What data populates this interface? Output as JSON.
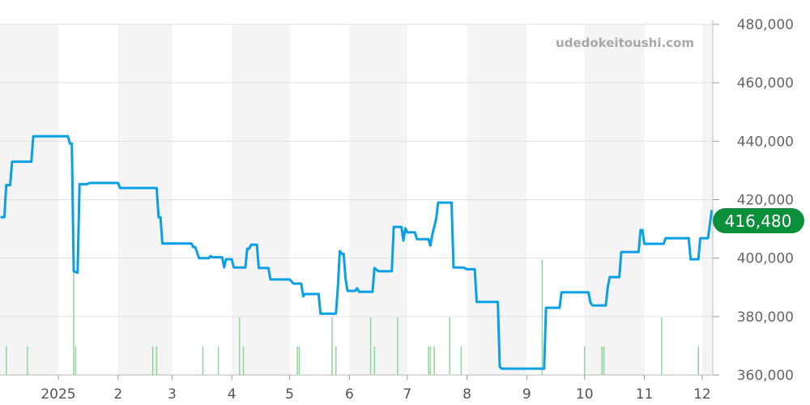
{
  "watermark": "udedokeitoushi.com",
  "current_price_label": "416,480",
  "colors": {
    "line": "#0aa0e6",
    "volume": "#8fd49a",
    "badge": "#0b8f3a",
    "band": "#f4f4f4",
    "grid": "#e0e0e0"
  },
  "chart_data": {
    "type": "line",
    "title": "",
    "xlabel": "",
    "ylabel": "",
    "ylim": [
      360000,
      480000
    ],
    "xlim": [
      "2024-12-02",
      "2025-12-06"
    ],
    "grid": true,
    "y_ticks": [
      {
        "value": 360000,
        "label": "360,000"
      },
      {
        "value": 380000,
        "label": "380,000"
      },
      {
        "value": 400000,
        "label": "400,000"
      },
      {
        "value": 420000,
        "label": "420,000"
      },
      {
        "value": 440000,
        "label": "440,000"
      },
      {
        "value": 460000,
        "label": "460,000"
      },
      {
        "value": 480000,
        "label": "480,000"
      }
    ],
    "x_ticks": [
      {
        "date": "2025-01-01",
        "label": "2025"
      },
      {
        "date": "2025-02-01",
        "label": "2"
      },
      {
        "date": "2025-03-01",
        "label": "3"
      },
      {
        "date": "2025-04-01",
        "label": "4"
      },
      {
        "date": "2025-05-01",
        "label": "5"
      },
      {
        "date": "2025-06-01",
        "label": "6"
      },
      {
        "date": "2025-07-01",
        "label": "7"
      },
      {
        "date": "2025-08-01",
        "label": "8"
      },
      {
        "date": "2025-09-01",
        "label": "9"
      },
      {
        "date": "2025-10-01",
        "label": "10"
      },
      {
        "date": "2025-11-01",
        "label": "11"
      },
      {
        "date": "2025-12-01",
        "label": "12"
      }
    ],
    "price_series": [
      [
        "2024-12-02",
        414000
      ],
      [
        "2024-12-04",
        414000
      ],
      [
        "2024-12-05",
        425000
      ],
      [
        "2024-12-07",
        425000
      ],
      [
        "2024-12-08",
        433000
      ],
      [
        "2024-12-18",
        433000
      ],
      [
        "2024-12-19",
        441700
      ],
      [
        "2025-01-06",
        441700
      ],
      [
        "2025-01-07",
        439200
      ],
      [
        "2025-01-08",
        439200
      ],
      [
        "2025-01-09",
        395500
      ],
      [
        "2025-01-11",
        395000
      ],
      [
        "2025-01-12",
        425300
      ],
      [
        "2025-01-16",
        425300
      ],
      [
        "2025-01-17",
        425700
      ],
      [
        "2025-02-01",
        425700
      ],
      [
        "2025-02-02",
        424000
      ],
      [
        "2025-02-21",
        424000
      ],
      [
        "2025-02-22",
        414000
      ],
      [
        "2025-02-23",
        414000
      ],
      [
        "2025-02-24",
        405000
      ],
      [
        "2025-03-11",
        405000
      ],
      [
        "2025-03-12",
        403800
      ],
      [
        "2025-03-13",
        403800
      ],
      [
        "2025-03-15",
        400000
      ],
      [
        "2025-03-20",
        400000
      ],
      [
        "2025-03-21",
        400700
      ],
      [
        "2025-03-22",
        400300
      ],
      [
        "2025-03-27",
        400300
      ],
      [
        "2025-03-28",
        396800
      ],
      [
        "2025-03-29",
        399600
      ],
      [
        "2025-04-01",
        399600
      ],
      [
        "2025-04-02",
        396800
      ],
      [
        "2025-04-08",
        396800
      ],
      [
        "2025-04-09",
        403200
      ],
      [
        "2025-04-10",
        403200
      ],
      [
        "2025-04-11",
        404600
      ],
      [
        "2025-04-14",
        404600
      ],
      [
        "2025-04-15",
        396600
      ],
      [
        "2025-04-20",
        396600
      ],
      [
        "2025-04-21",
        392700
      ],
      [
        "2025-05-01",
        392700
      ],
      [
        "2025-05-03",
        391300
      ],
      [
        "2025-05-07",
        391300
      ],
      [
        "2025-05-08",
        386900
      ],
      [
        "2025-05-09",
        387700
      ],
      [
        "2025-05-16",
        387700
      ],
      [
        "2025-05-17",
        381000
      ],
      [
        "2025-05-25",
        381000
      ],
      [
        "2025-05-26",
        390000
      ],
      [
        "2025-05-27",
        402400
      ],
      [
        "2025-05-28",
        401500
      ],
      [
        "2025-05-29",
        401500
      ],
      [
        "2025-05-30",
        393000
      ],
      [
        "2025-05-31",
        388800
      ],
      [
        "2025-06-04",
        388800
      ],
      [
        "2025-06-05",
        389700
      ],
      [
        "2025-06-06",
        388500
      ],
      [
        "2025-06-13",
        388500
      ],
      [
        "2025-06-14",
        396600
      ],
      [
        "2025-06-16",
        395500
      ],
      [
        "2025-06-23",
        395500
      ],
      [
        "2025-06-24",
        410700
      ],
      [
        "2025-06-28",
        410700
      ],
      [
        "2025-06-29",
        406000
      ],
      [
        "2025-06-30",
        410200
      ],
      [
        "2025-07-01",
        408800
      ],
      [
        "2025-07-05",
        408800
      ],
      [
        "2025-07-06",
        406500
      ],
      [
        "2025-07-12",
        406500
      ],
      [
        "2025-07-13",
        404300
      ],
      [
        "2025-07-14",
        408000
      ],
      [
        "2025-07-16",
        413500
      ],
      [
        "2025-07-17",
        419000
      ],
      [
        "2025-07-24",
        419000
      ],
      [
        "2025-07-25",
        396800
      ],
      [
        "2025-07-30",
        396800
      ],
      [
        "2025-08-01",
        396200
      ],
      [
        "2025-08-05",
        396200
      ],
      [
        "2025-08-06",
        385000
      ],
      [
        "2025-08-17",
        385000
      ],
      [
        "2025-08-18",
        362800
      ],
      [
        "2025-08-19",
        362200
      ],
      [
        "2025-09-10",
        362200
      ],
      [
        "2025-09-11",
        383000
      ],
      [
        "2025-09-18",
        383000
      ],
      [
        "2025-09-19",
        388300
      ],
      [
        "2025-10-03",
        388300
      ],
      [
        "2025-10-04",
        384800
      ],
      [
        "2025-10-05",
        383800
      ],
      [
        "2025-10-12",
        383800
      ],
      [
        "2025-10-13",
        390000
      ],
      [
        "2025-10-14",
        393500
      ],
      [
        "2025-10-19",
        393500
      ],
      [
        "2025-10-20",
        402100
      ],
      [
        "2025-10-29",
        402100
      ],
      [
        "2025-10-30",
        409600
      ],
      [
        "2025-10-31",
        409600
      ],
      [
        "2025-11-01",
        404900
      ],
      [
        "2025-11-11",
        404900
      ],
      [
        "2025-11-12",
        406800
      ],
      [
        "2025-11-24",
        406800
      ],
      [
        "2025-11-25",
        399600
      ],
      [
        "2025-11-29",
        399600
      ],
      [
        "2025-11-30",
        406800
      ],
      [
        "2025-12-04",
        406800
      ],
      [
        "2025-12-06",
        416480
      ]
    ],
    "volume_series": [
      [
        "2024-12-05",
        1
      ],
      [
        "2024-12-16",
        1
      ],
      [
        "2025-01-09",
        3.6
      ],
      [
        "2025-01-10",
        1
      ],
      [
        "2025-02-19",
        1
      ],
      [
        "2025-02-21",
        1
      ],
      [
        "2025-03-17",
        1
      ],
      [
        "2025-03-25",
        1
      ],
      [
        "2025-04-05",
        2
      ],
      [
        "2025-04-07",
        1
      ],
      [
        "2025-05-05",
        1
      ],
      [
        "2025-05-06",
        1
      ],
      [
        "2025-05-23",
        2
      ],
      [
        "2025-05-25",
        1
      ],
      [
        "2025-06-12",
        2
      ],
      [
        "2025-06-14",
        1
      ],
      [
        "2025-06-26",
        2
      ],
      [
        "2025-07-12",
        1
      ],
      [
        "2025-07-13",
        1
      ],
      [
        "2025-07-15",
        1
      ],
      [
        "2025-07-23",
        2
      ],
      [
        "2025-07-29",
        1
      ],
      [
        "2025-09-09",
        4
      ],
      [
        "2025-10-01",
        1
      ],
      [
        "2025-10-10",
        1
      ],
      [
        "2025-10-11",
        1
      ],
      [
        "2025-11-10",
        2
      ],
      [
        "2025-11-29",
        1
      ]
    ]
  }
}
